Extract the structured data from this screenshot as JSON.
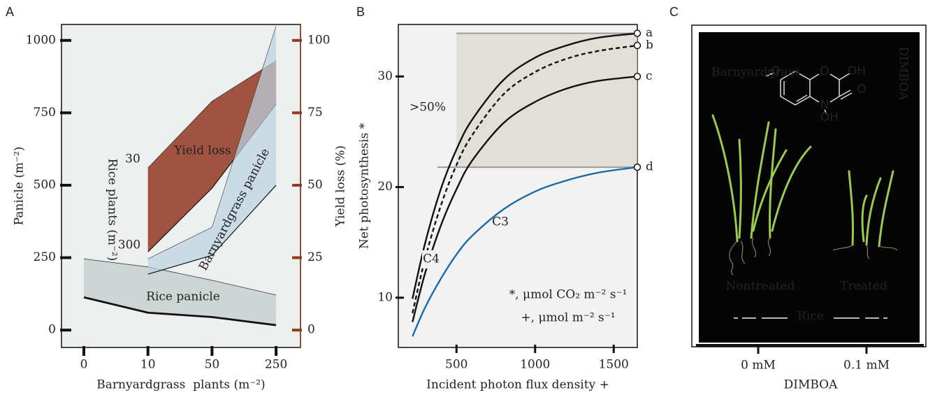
{
  "chart_data": [
    {
      "type": "band",
      "panel": "A",
      "xlabel": "Barnyardgrass  plants (m⁻²)",
      "ylabel": "Panicle (m⁻²)",
      "y2label": "Yield loss (%)",
      "categories": [
        "0",
        "10",
        "50",
        "250"
      ],
      "ylim": [
        -60,
        1055
      ],
      "yticks": [
        0,
        250,
        500,
        750,
        1000
      ],
      "y2lim": [
        -6,
        105.5
      ],
      "y2ticks": [
        0,
        25,
        50,
        75,
        100
      ],
      "series": [
        {
          "name": "Rice panicle",
          "color": "#cdd6d5",
          "lower": [
            113,
            60,
            45,
            17
          ],
          "upper": [
            246,
            218,
            172,
            121
          ]
        },
        {
          "name": "Yield loss",
          "color": "#9a4a36",
          "axis": "y2",
          "lower": [
            null,
            27,
            49,
            78
          ],
          "upper": [
            null,
            56,
            79,
            93
          ]
        },
        {
          "name": "Barnyardgrass panicle",
          "color": "#bcd2e2",
          "lower": [
            null,
            193,
            258,
            500
          ],
          "upper": [
            null,
            246,
            355,
            1050
          ]
        }
      ],
      "annotation": {
        "title": "Rice plants (m⁻²)",
        "high": "30",
        "low": "300"
      }
    },
    {
      "type": "line",
      "panel": "B",
      "xlabel": "Incident photon flux density +",
      "ylabel": "Net photosynthesis *",
      "x": [
        220,
        300,
        400,
        500,
        600,
        800,
        1000,
        1200,
        1400,
        1650
      ],
      "xlim": [
        130,
        1650
      ],
      "xticks": [
        500,
        1000,
        1500
      ],
      "ylim": [
        5.5,
        34.7
      ],
      "yticks": [
        10,
        20,
        30
      ],
      "series": [
        {
          "name": "a",
          "color": "#111111",
          "dash": false,
          "values": [
            9.9,
            14.9,
            19.8,
            23.4,
            26.1,
            29.7,
            31.7,
            32.8,
            33.5,
            33.9
          ]
        },
        {
          "name": "b",
          "color": "#111111",
          "dash": true,
          "values": [
            8.6,
            13.5,
            18.3,
            22.0,
            24.7,
            28.4,
            30.4,
            31.6,
            32.3,
            32.8
          ]
        },
        {
          "name": "c",
          "color": "#111111",
          "dash": false,
          "values": [
            7.8,
            12.2,
            16.5,
            19.8,
            22.4,
            25.8,
            27.7,
            28.9,
            29.6,
            30.0
          ]
        },
        {
          "name": "d",
          "color": "#1d6aa3",
          "dash": false,
          "values": [
            6.5,
            9.1,
            11.7,
            13.9,
            15.6,
            18.0,
            19.6,
            20.6,
            21.3,
            21.8
          ]
        }
      ],
      "shaded": {
        "xlim": [
          500,
          1650
        ],
        "ylim": [
          21.8,
          33.9
        ]
      },
      "labels": {
        "c4": "C4",
        "c3": "C3",
        "gain": ">50%"
      },
      "notes": [
        "*, μmol CO₂ m⁻² s⁻¹",
        "+, μmol m⁻² s⁻¹"
      ]
    },
    {
      "type": "image",
      "panel": "C",
      "xlabel": "DIMBOA",
      "categories": [
        "0 mM",
        "0.1 mM"
      ],
      "labels": {
        "species": "Barnyardgrass",
        "compound": "DIMBOA",
        "control": "Nontreated",
        "treated": "Treated",
        "crop": "Rice"
      },
      "structure": [
        "O",
        "O",
        "OH",
        "O",
        "N",
        "OH"
      ]
    }
  ]
}
